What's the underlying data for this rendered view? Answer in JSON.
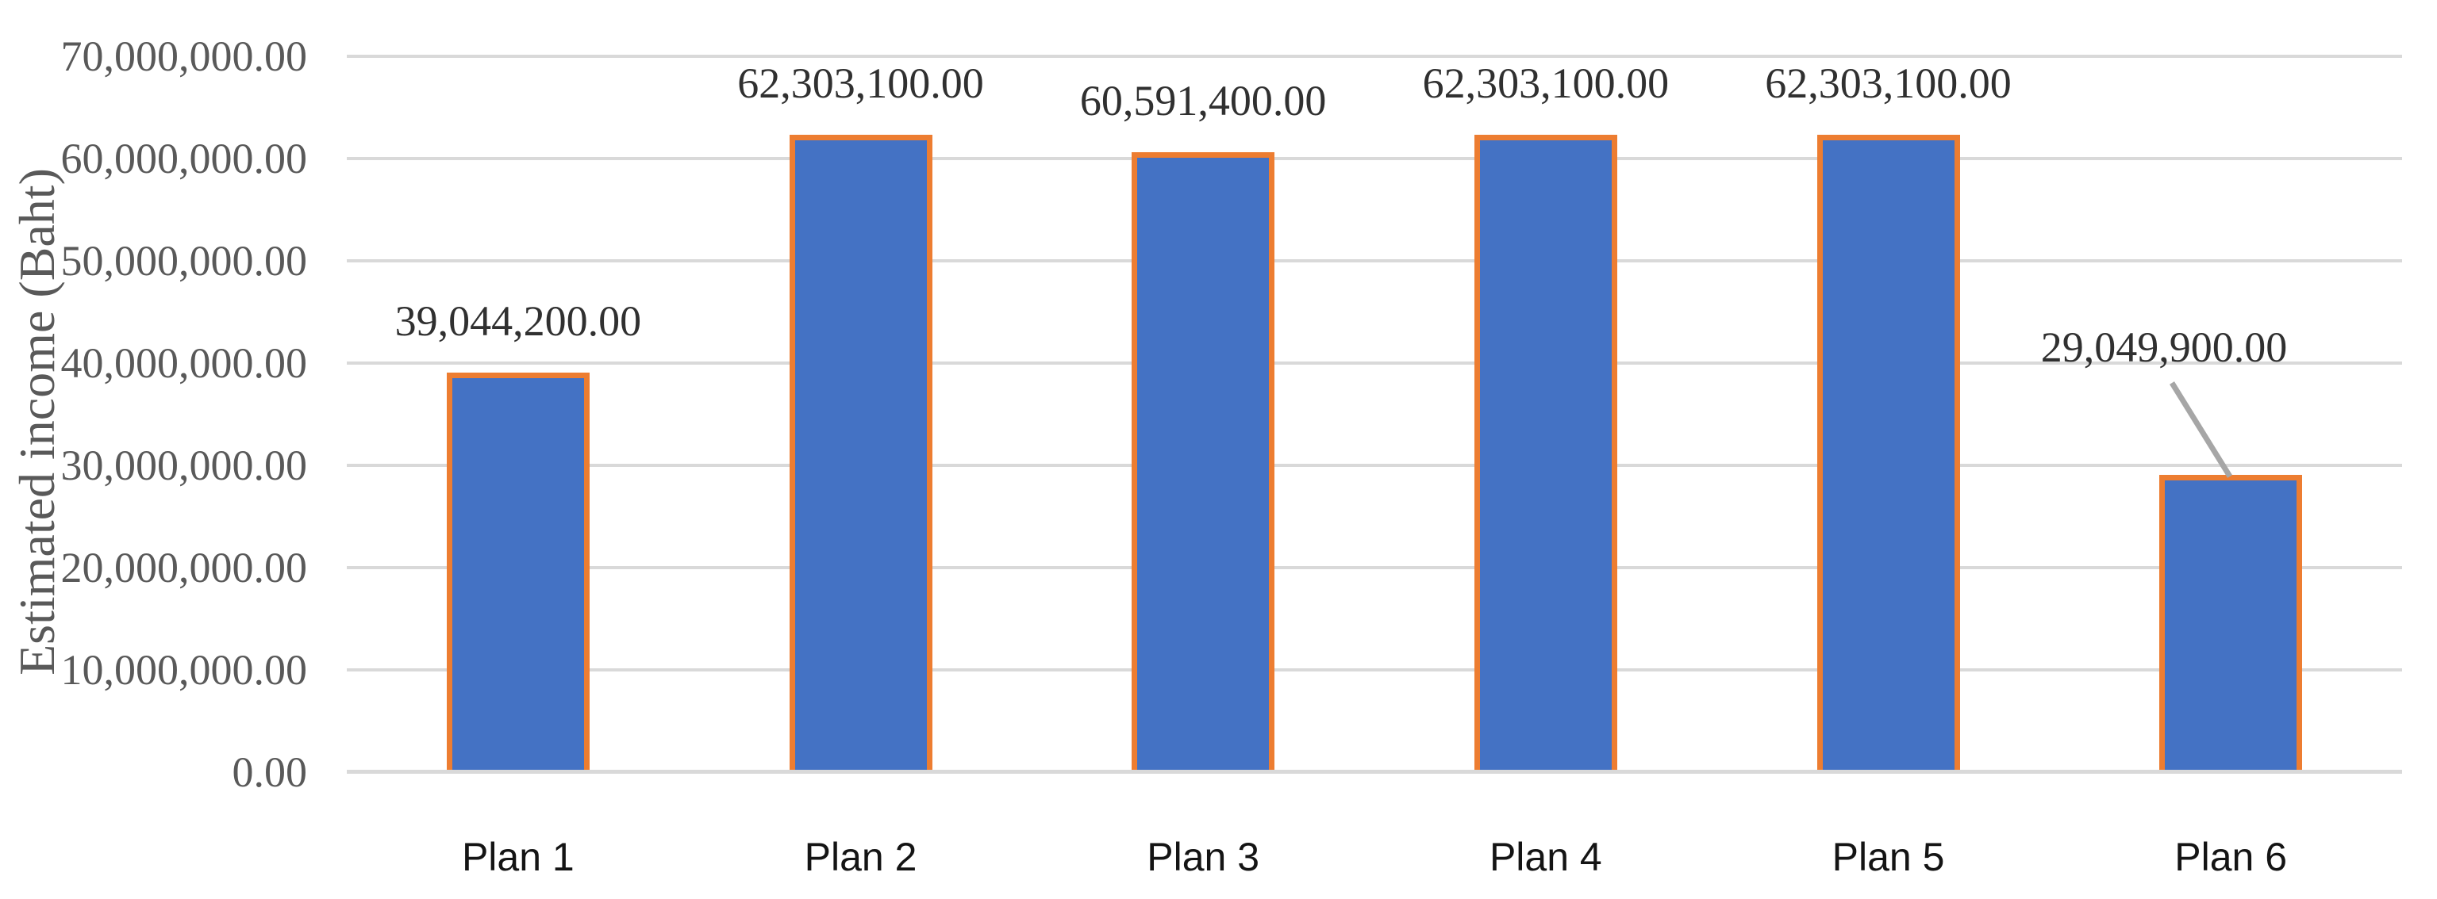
{
  "chart_data": {
    "type": "bar",
    "title": "",
    "xlabel": "",
    "ylabel": "Estimated income (Baht)",
    "categories": [
      "Plan 1",
      "Plan 2",
      "Plan 3",
      "Plan 4",
      "Plan 5",
      "Plan 6"
    ],
    "values": [
      39044200.0,
      62303100.0,
      60591400.0,
      62303100.0,
      62303100.0,
      29049900.0
    ],
    "data_labels": [
      "39,044,200.00",
      "62,303,100.00",
      "60,591,400.00",
      "62,303,100.00",
      "62,303,100.00",
      "29,049,900.00"
    ],
    "ylim": [
      0,
      70000000
    ],
    "ytick_interval": 10000000,
    "ytick_labels": [
      "70,000,000.00",
      "60,000,000.00",
      "50,000,000.00",
      "40,000,000.00",
      "30,000,000.00",
      "20,000,000.00",
      "10,000,000.00",
      "0.00"
    ],
    "grid": "horizontal",
    "legend": "none",
    "bar_orientation": "vertical",
    "annotations": [
      {
        "category": "Plan 6",
        "label": "29,049,900.00",
        "note": "data label raised above bar, connected by diagonal leader line"
      }
    ],
    "colors": {
      "bar_fill": "#4472C4",
      "bar_border": "#ED7D31",
      "gridline": "#D9D9D9",
      "axis_line": "#D9D9D9",
      "leader_line": "#A6A6A6",
      "ytick_text": "#595959",
      "axis_title_text": "#595959",
      "data_label_text": "#303030",
      "category_text": "#141414",
      "background": "#FFFFFF"
    }
  }
}
